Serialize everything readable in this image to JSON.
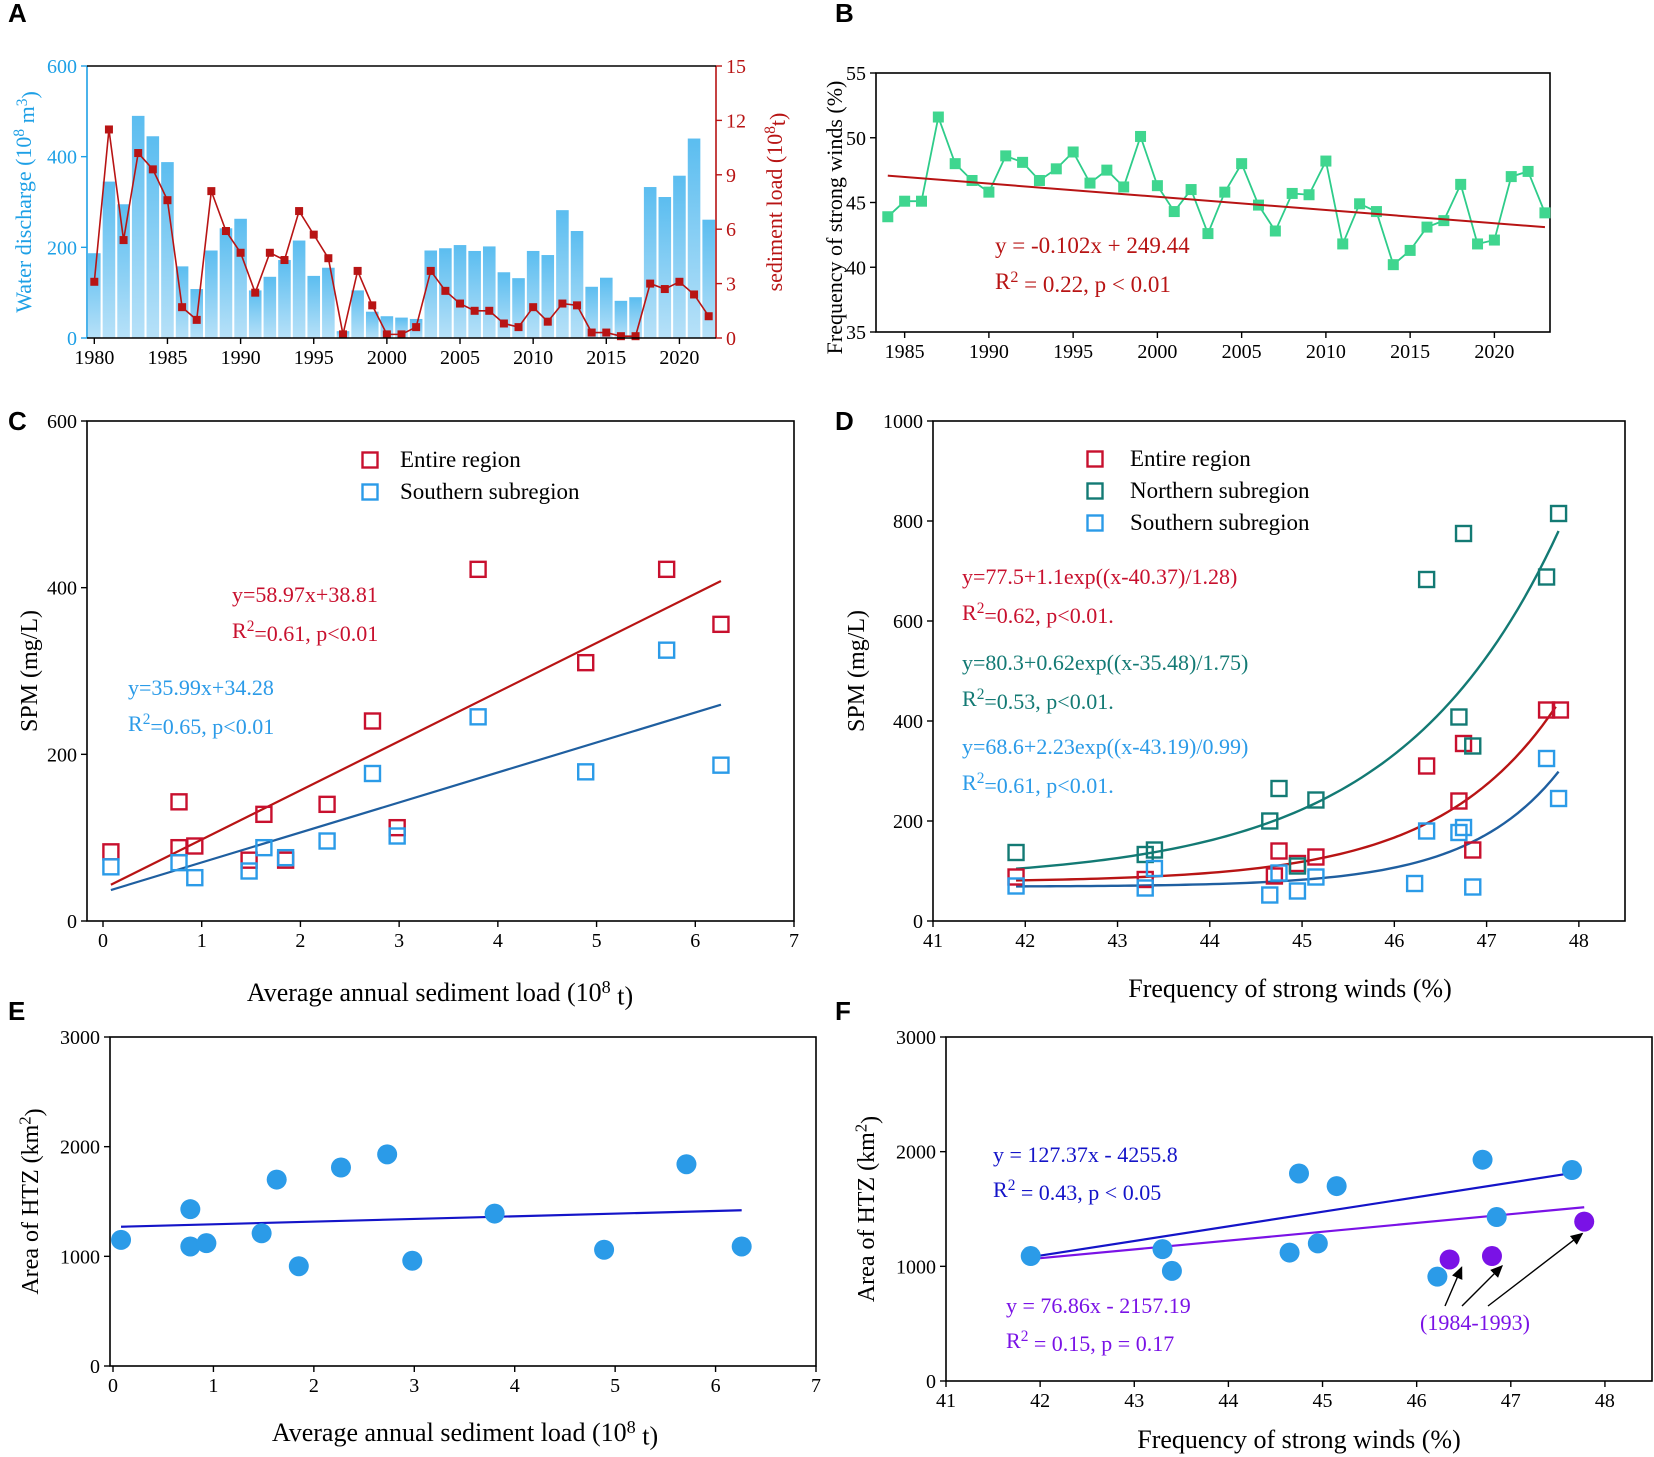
{
  "colors": {
    "blue_axis": "#1ea0e6",
    "bar": "#5bbdf0",
    "bar_light": "#b7e1f8",
    "red": "#c8102e",
    "dark_red": "#b81414",
    "green_marker": "#3fd68f",
    "green_line": "#2ecc8a",
    "teal": "#137a74",
    "sky": "#2b9be8",
    "navy_fit": "#1f5fa0",
    "blue_fit": "#1414c8",
    "purple": "#7a12e6",
    "black": "#000000"
  },
  "chart_data": [
    {
      "id": "A",
      "type": "bar",
      "panel_label": "A",
      "xticks": [
        1980,
        1985,
        1990,
        1995,
        2000,
        2005,
        2010,
        2015,
        2020
      ],
      "xlim": [
        1979.5,
        2022.5
      ],
      "left_axis": {
        "label_main": "Water discharge (10",
        "label_sup": "8",
        "label_tail": " m",
        "label_sup2": "3",
        "label_end": ")",
        "ylim": [
          0,
          600
        ],
        "ticks": [
          0,
          200,
          400,
          600
        ]
      },
      "right_axis": {
        "label_main": "sediment load (10",
        "label_sup": "8",
        "label_end": "t)",
        "ylim": [
          0,
          15
        ],
        "ticks": [
          0,
          3,
          6,
          9,
          12,
          15
        ]
      },
      "years": [
        1980,
        1981,
        1982,
        1983,
        1984,
        1985,
        1986,
        1987,
        1988,
        1989,
        1990,
        1991,
        1992,
        1993,
        1994,
        1995,
        1996,
        1997,
        1998,
        1999,
        2000,
        2001,
        2002,
        2003,
        2004,
        2005,
        2006,
        2007,
        2008,
        2009,
        2010,
        2011,
        2012,
        2013,
        2014,
        2015,
        2016,
        2017,
        2018,
        2019,
        2020,
        2021,
        2022
      ],
      "discharge": [
        187,
        345,
        295,
        490,
        445,
        388,
        158,
        108,
        193,
        242,
        263,
        105,
        135,
        172,
        215,
        137,
        155,
        15,
        105,
        58,
        48,
        45,
        42,
        193,
        198,
        205,
        192,
        202,
        145,
        132,
        192,
        183,
        282,
        236,
        113,
        133,
        82,
        90,
        333,
        311,
        358,
        440,
        261
      ],
      "sediment": [
        3.1,
        11.5,
        5.4,
        10.2,
        9.3,
        7.6,
        1.7,
        1.0,
        8.1,
        5.9,
        4.7,
        2.5,
        4.7,
        4.3,
        7.0,
        5.7,
        4.4,
        0.2,
        3.7,
        1.8,
        0.2,
        0.2,
        0.6,
        3.7,
        2.6,
        1.9,
        1.5,
        1.5,
        0.8,
        0.6,
        1.7,
        0.9,
        1.9,
        1.8,
        0.3,
        0.3,
        0.1,
        0.1,
        3.0,
        2.7,
        3.1,
        2.4,
        1.2
      ]
    },
    {
      "id": "B",
      "type": "line",
      "panel_label": "B",
      "ylabel": "Frequency of strong winds (%)",
      "xlim": [
        1983.3,
        2023.3
      ],
      "ylim": [
        35,
        55
      ],
      "xticks": [
        1985,
        1990,
        1995,
        2000,
        2005,
        2010,
        2015,
        2020
      ],
      "yticks": [
        35,
        40,
        45,
        50,
        55
      ],
      "x": [
        1984,
        1985,
        1986,
        1987,
        1988,
        1989,
        1990,
        1991,
        1992,
        1993,
        1994,
        1995,
        1996,
        1997,
        1998,
        1999,
        2000,
        2001,
        2002,
        2003,
        2004,
        2005,
        2006,
        2007,
        2008,
        2009,
        2010,
        2011,
        2012,
        2013,
        2014,
        2015,
        2016,
        2017,
        2018,
        2019,
        2020,
        2021,
        2022,
        2023
      ],
      "y": [
        43.9,
        45.1,
        45.1,
        51.6,
        48.0,
        46.7,
        45.8,
        48.6,
        48.1,
        46.7,
        47.6,
        48.9,
        46.5,
        47.5,
        46.2,
        50.1,
        46.3,
        44.3,
        46.0,
        42.6,
        45.8,
        48.0,
        44.8,
        42.8,
        45.7,
        45.6,
        48.2,
        41.8,
        44.9,
        44.3,
        40.2,
        41.3,
        43.1,
        43.6,
        46.4,
        41.8,
        42.1,
        47.0,
        47.4,
        44.2
      ],
      "fit": {
        "slope": -0.102,
        "intercept": 249.44
      },
      "eq1": "y = -0.102x + 249.44",
      "eq2_pre": "R",
      "eq2_sup": "2",
      "eq2_post": " = 0.22, p < 0.01"
    },
    {
      "id": "C",
      "type": "scatter",
      "panel_label": "C",
      "xlabel_main": "Average annual sediment load (10",
      "xlabel_sup": "8",
      "xlabel_end": " t)",
      "ylabel": "SPM (mg/L)",
      "xlim": [
        0,
        7
      ],
      "ylim": [
        0,
        600
      ],
      "xticks": [
        0,
        1,
        2,
        3,
        4,
        5,
        6,
        7
      ],
      "yticks": [
        0,
        200,
        400,
        600
      ],
      "series": [
        {
          "name": "Entire region",
          "color": "red",
          "x": [
            0.08,
            0.77,
            0.77,
            0.93,
            1.48,
            1.63,
            1.85,
            2.27,
            2.73,
            2.98,
            3.8,
            4.89,
            5.71,
            6.26
          ],
          "y": [
            83,
            143,
            88,
            90,
            73,
            128,
            73,
            140,
            240,
            112,
            422,
            310,
            422,
            356
          ],
          "fit": [
            58.97,
            38.81
          ],
          "eq1": "y=58.97x+38.81",
          "eq2_pre": "R",
          "eq2_sup": "2",
          "eq2_post": "=0.61, p<0.01"
        },
        {
          "name": "Southern subregion",
          "color": "sky",
          "x": [
            0.08,
            0.77,
            0.93,
            1.48,
            1.63,
            1.85,
            2.27,
            2.73,
            2.98,
            3.8,
            4.89,
            5.71,
            6.26
          ],
          "y": [
            65,
            70,
            52,
            60,
            88,
            76,
            96,
            177,
            102,
            245,
            179,
            325,
            187
          ],
          "fit": [
            35.99,
            34.28
          ],
          "eq1": "y=35.99x+34.28",
          "eq2_pre": "R",
          "eq2_sup": "2",
          "eq2_post": "=0.65, p<0.01"
        }
      ]
    },
    {
      "id": "D",
      "type": "scatter",
      "panel_label": "D",
      "xlabel": "Frequency of strong winds (%)",
      "ylabel": "SPM (mg/L)",
      "xlim": [
        41,
        48.5
      ],
      "ylim": [
        0,
        1000
      ],
      "xticks": [
        41,
        42,
        43,
        44,
        45,
        46,
        47,
        48
      ],
      "yticks": [
        0,
        200,
        400,
        600,
        800,
        1000
      ],
      "series": [
        {
          "name": "Entire region",
          "color": "red",
          "x": [
            41.9,
            43.3,
            44.7,
            44.75,
            44.95,
            45.15,
            46.35,
            46.7,
            46.75,
            46.85,
            47.65,
            47.8
          ],
          "y": [
            88,
            83,
            90,
            140,
            115,
            128,
            310,
            240,
            355,
            142,
            422,
            422
          ],
          "fit": {
            "a": 77.5,
            "b": 1.1,
            "c": 40.37,
            "d": 1.28
          },
          "eq1": "y=77.5+1.1exp((x-40.37)/1.28)",
          "eq2_pre": "R",
          "eq2_sup": "2",
          "eq2_post": "=0.62, p<0.01."
        },
        {
          "name": "Northern subregion",
          "color": "teal",
          "x": [
            41.9,
            43.3,
            43.4,
            44.65,
            44.75,
            44.95,
            45.15,
            46.35,
            46.7,
            46.75,
            46.85,
            47.65,
            47.78
          ],
          "y": [
            137,
            133,
            142,
            200,
            265,
            110,
            242,
            683,
            408,
            775,
            350,
            688,
            815
          ],
          "fit": {
            "a": 80.3,
            "b": 0.62,
            "c": 35.48,
            "d": 1.75
          },
          "eq1": "y=80.3+0.62exp((x-35.48)/1.75)",
          "eq2_pre": "R",
          "eq2_sup": "2",
          "eq2_post": "=0.53, p<0.01."
        },
        {
          "name": "Southern subregion",
          "color": "sky",
          "x": [
            41.9,
            43.3,
            43.4,
            44.65,
            44.75,
            44.95,
            45.15,
            46.22,
            46.35,
            46.7,
            46.75,
            46.85,
            47.65,
            47.78
          ],
          "y": [
            70,
            66,
            105,
            52,
            96,
            60,
            88,
            75,
            180,
            177,
            187,
            68,
            325,
            245
          ],
          "fit": {
            "a": 68.6,
            "b": 2.23,
            "c": 43.19,
            "d": 0.99
          },
          "eq1": "y=68.6+2.23exp((x-43.19)/0.99)",
          "eq2_pre": "R",
          "eq2_sup": "2",
          "eq2_post": "=0.61, p<0.01."
        }
      ]
    },
    {
      "id": "E",
      "type": "scatter",
      "panel_label": "E",
      "xlabel_main": "Average annual sediment load (10",
      "xlabel_sup": "8",
      "xlabel_end": " t)",
      "ylabel_main": "Area of HTZ (km",
      "ylabel_sup": "2",
      "ylabel_end": ")",
      "xlim": [
        0,
        7
      ],
      "ylim": [
        0,
        3000
      ],
      "xticks": [
        0,
        1,
        2,
        3,
        4,
        5,
        6,
        7
      ],
      "yticks": [
        0,
        1000,
        2000,
        3000
      ],
      "x": [
        0.08,
        0.77,
        0.77,
        0.93,
        1.48,
        1.63,
        1.85,
        2.27,
        2.73,
        2.98,
        3.8,
        4.89,
        5.71,
        6.26
      ],
      "y": [
        1150,
        1430,
        1090,
        1120,
        1210,
        1700,
        910,
        1810,
        1930,
        960,
        1390,
        1060,
        1840,
        1090
      ],
      "fit_line": [
        [
          0.08,
          1270
        ],
        [
          6.26,
          1420
        ]
      ]
    },
    {
      "id": "F",
      "type": "scatter",
      "panel_label": "F",
      "xlabel": "Frequency of strong winds (%)",
      "ylabel_main": "Area of HTZ (km",
      "ylabel_sup": "2",
      "ylabel_end": ")",
      "xlim": [
        41,
        48.5
      ],
      "ylim": [
        0,
        3000
      ],
      "xticks": [
        41,
        42,
        43,
        44,
        45,
        46,
        47,
        48
      ],
      "yticks": [
        0,
        1000,
        2000,
        3000
      ],
      "blue_points": {
        "x": [
          41.9,
          43.3,
          43.4,
          44.65,
          44.75,
          44.95,
          45.15,
          46.22,
          46.7,
          46.85,
          47.65
        ],
        "y": [
          1090,
          1150,
          960,
          1120,
          1810,
          1200,
          1700,
          910,
          1930,
          1430,
          1840
        ]
      },
      "purple_points": {
        "x": [
          46.35,
          46.8,
          47.78
        ],
        "y": [
          1060,
          1090,
          1390
        ]
      },
      "fit_blue": {
        "slope": 127.37,
        "intercept": -4255.8,
        "x0": 41.9,
        "x1": 47.65,
        "eq1": "y = 127.37x - 4255.8",
        "eq2_pre": "R",
        "eq2_sup": "2",
        "eq2_post": " = 0.43, p < 0.05"
      },
      "fit_purple": {
        "slope": 76.86,
        "intercept": -2157.19,
        "x0": 41.9,
        "x1": 47.78,
        "eq1": "y = 76.86x - 2157.19",
        "eq2_pre": "R",
        "eq2_sup": "2",
        "eq2_post": " = 0.15, p = 0.17"
      },
      "annotation": "(1984-1993)"
    }
  ]
}
